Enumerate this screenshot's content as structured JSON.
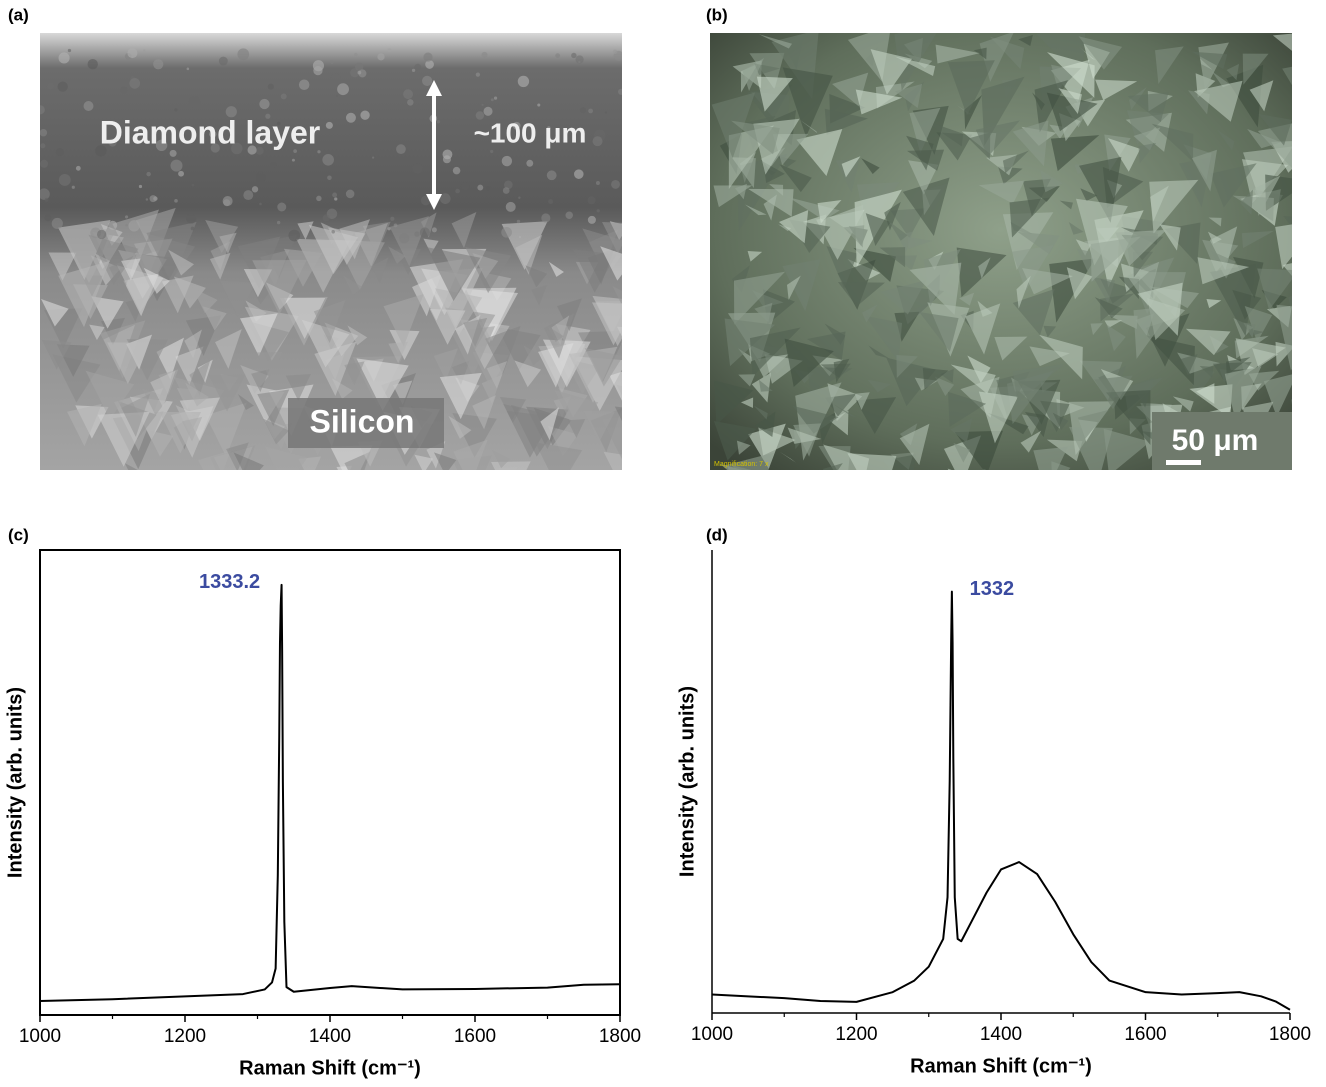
{
  "panels": [
    {
      "label": "(a)",
      "layer_label": "Diamond layer",
      "thickness_label": "~100 μm",
      "substrate_label": "Silicon"
    },
    {
      "label": "(b)",
      "scale_bar": "50 μm",
      "caption": "Magnification: 7 x"
    }
  ],
  "chart_data": [
    {
      "type": "line",
      "label": "(c)",
      "x_label": "Raman Shift (cm⁻¹)",
      "y_label": "Intensity (arb. units)",
      "annotations": [
        {
          "text": "1333.2",
          "color": "#3b4ba0"
        }
      ],
      "x": [
        1000,
        1100,
        1200,
        1280,
        1310,
        1320,
        1325,
        1328,
        1330,
        1331,
        1332,
        1333.2,
        1334,
        1335,
        1337,
        1340,
        1350,
        1400,
        1430,
        1500,
        1600,
        1700,
        1750,
        1800
      ],
      "values": [
        3.0,
        3.4,
        4.0,
        4.5,
        5.5,
        7,
        10,
        30,
        60,
        80,
        88,
        92.5,
        78,
        50,
        20,
        6,
        5,
        5.8,
        6.2,
        5.5,
        5.6,
        5.9,
        6.5,
        6.6
      ],
      "color": "#000000",
      "xlim": [
        1000,
        1800
      ],
      "ylim": [
        0,
        100
      ],
      "xticks": [
        1000,
        1200,
        1400,
        1600,
        1800
      ],
      "xminorticks": [
        1100,
        1300,
        1500,
        1700
      ],
      "frame": true
    },
    {
      "type": "line",
      "label": "(d)",
      "x_label": "Raman  Shift  (cm⁻¹)",
      "y_label": "Intensity (arb. units)",
      "annotations": [
        {
          "text": "1332",
          "color": "#3b4ba0"
        }
      ],
      "x": [
        1000,
        1050,
        1100,
        1150,
        1200,
        1250,
        1280,
        1300,
        1320,
        1326,
        1329,
        1331,
        1332,
        1333,
        1334,
        1336,
        1340,
        1345,
        1360,
        1380,
        1400,
        1425,
        1450,
        1475,
        1500,
        1525,
        1550,
        1600,
        1650,
        1700,
        1730,
        1760,
        1780,
        1800
      ],
      "values": [
        4.0,
        3.6,
        3.2,
        2.6,
        2.4,
        4.5,
        7,
        10,
        16,
        25,
        50,
        80,
        91,
        80,
        55,
        25,
        16,
        15.5,
        20,
        26,
        31,
        32.6,
        30,
        24,
        17,
        11,
        7,
        4.5,
        4,
        4.3,
        4.5,
        3.6,
        2.5,
        0.7
      ],
      "color": "#000000",
      "xlim": [
        1000,
        1800
      ],
      "ylim": [
        0,
        100
      ],
      "xticks": [
        1000,
        1200,
        1400,
        1600,
        1800
      ],
      "xminorticks": [
        1100,
        1300,
        1500,
        1700
      ],
      "frame": false
    }
  ]
}
